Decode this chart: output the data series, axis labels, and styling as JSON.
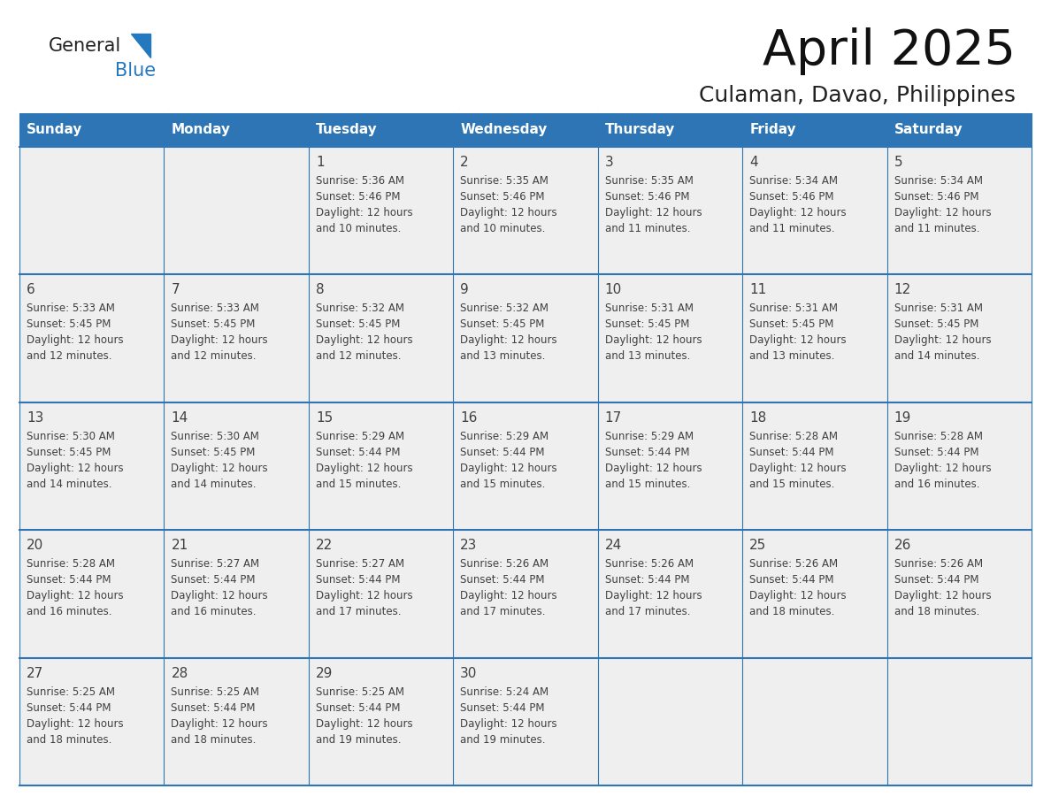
{
  "title": "April 2025",
  "subtitle": "Culaman, Davao, Philippines",
  "header_bg": "#2E75B6",
  "header_text_color": "#FFFFFF",
  "cell_bg": "#EFEFEF",
  "text_color": "#404040",
  "line_color": "#2E75B6",
  "logo_general_color": "#222222",
  "logo_blue_color": "#2478BE",
  "day_headers": [
    "Sunday",
    "Monday",
    "Tuesday",
    "Wednesday",
    "Thursday",
    "Friday",
    "Saturday"
  ],
  "calendar": [
    [
      {
        "day": "",
        "sunrise": "",
        "sunset": "",
        "daylight": ""
      },
      {
        "day": "",
        "sunrise": "",
        "sunset": "",
        "daylight": ""
      },
      {
        "day": "1",
        "sunrise": "5:36 AM",
        "sunset": "5:46 PM",
        "daylight": "12 hours and 10 minutes."
      },
      {
        "day": "2",
        "sunrise": "5:35 AM",
        "sunset": "5:46 PM",
        "daylight": "12 hours and 10 minutes."
      },
      {
        "day": "3",
        "sunrise": "5:35 AM",
        "sunset": "5:46 PM",
        "daylight": "12 hours and 11 minutes."
      },
      {
        "day": "4",
        "sunrise": "5:34 AM",
        "sunset": "5:46 PM",
        "daylight": "12 hours and 11 minutes."
      },
      {
        "day": "5",
        "sunrise": "5:34 AM",
        "sunset": "5:46 PM",
        "daylight": "12 hours and 11 minutes."
      }
    ],
    [
      {
        "day": "6",
        "sunrise": "5:33 AM",
        "sunset": "5:45 PM",
        "daylight": "12 hours and 12 minutes."
      },
      {
        "day": "7",
        "sunrise": "5:33 AM",
        "sunset": "5:45 PM",
        "daylight": "12 hours and 12 minutes."
      },
      {
        "day": "8",
        "sunrise": "5:32 AM",
        "sunset": "5:45 PM",
        "daylight": "12 hours and 12 minutes."
      },
      {
        "day": "9",
        "sunrise": "5:32 AM",
        "sunset": "5:45 PM",
        "daylight": "12 hours and 13 minutes."
      },
      {
        "day": "10",
        "sunrise": "5:31 AM",
        "sunset": "5:45 PM",
        "daylight": "12 hours and 13 minutes."
      },
      {
        "day": "11",
        "sunrise": "5:31 AM",
        "sunset": "5:45 PM",
        "daylight": "12 hours and 13 minutes."
      },
      {
        "day": "12",
        "sunrise": "5:31 AM",
        "sunset": "5:45 PM",
        "daylight": "12 hours and 14 minutes."
      }
    ],
    [
      {
        "day": "13",
        "sunrise": "5:30 AM",
        "sunset": "5:45 PM",
        "daylight": "12 hours and 14 minutes."
      },
      {
        "day": "14",
        "sunrise": "5:30 AM",
        "sunset": "5:45 PM",
        "daylight": "12 hours and 14 minutes."
      },
      {
        "day": "15",
        "sunrise": "5:29 AM",
        "sunset": "5:44 PM",
        "daylight": "12 hours and 15 minutes."
      },
      {
        "day": "16",
        "sunrise": "5:29 AM",
        "sunset": "5:44 PM",
        "daylight": "12 hours and 15 minutes."
      },
      {
        "day": "17",
        "sunrise": "5:29 AM",
        "sunset": "5:44 PM",
        "daylight": "12 hours and 15 minutes."
      },
      {
        "day": "18",
        "sunrise": "5:28 AM",
        "sunset": "5:44 PM",
        "daylight": "12 hours and 15 minutes."
      },
      {
        "day": "19",
        "sunrise": "5:28 AM",
        "sunset": "5:44 PM",
        "daylight": "12 hours and 16 minutes."
      }
    ],
    [
      {
        "day": "20",
        "sunrise": "5:28 AM",
        "sunset": "5:44 PM",
        "daylight": "12 hours and 16 minutes."
      },
      {
        "day": "21",
        "sunrise": "5:27 AM",
        "sunset": "5:44 PM",
        "daylight": "12 hours and 16 minutes."
      },
      {
        "day": "22",
        "sunrise": "5:27 AM",
        "sunset": "5:44 PM",
        "daylight": "12 hours and 17 minutes."
      },
      {
        "day": "23",
        "sunrise": "5:26 AM",
        "sunset": "5:44 PM",
        "daylight": "12 hours and 17 minutes."
      },
      {
        "day": "24",
        "sunrise": "5:26 AM",
        "sunset": "5:44 PM",
        "daylight": "12 hours and 17 minutes."
      },
      {
        "day": "25",
        "sunrise": "5:26 AM",
        "sunset": "5:44 PM",
        "daylight": "12 hours and 18 minutes."
      },
      {
        "day": "26",
        "sunrise": "5:26 AM",
        "sunset": "5:44 PM",
        "daylight": "12 hours and 18 minutes."
      }
    ],
    [
      {
        "day": "27",
        "sunrise": "5:25 AM",
        "sunset": "5:44 PM",
        "daylight": "12 hours and 18 minutes."
      },
      {
        "day": "28",
        "sunrise": "5:25 AM",
        "sunset": "5:44 PM",
        "daylight": "12 hours and 18 minutes."
      },
      {
        "day": "29",
        "sunrise": "5:25 AM",
        "sunset": "5:44 PM",
        "daylight": "12 hours and 19 minutes."
      },
      {
        "day": "30",
        "sunrise": "5:24 AM",
        "sunset": "5:44 PM",
        "daylight": "12 hours and 19 minutes."
      },
      {
        "day": "",
        "sunrise": "",
        "sunset": "",
        "daylight": ""
      },
      {
        "day": "",
        "sunrise": "",
        "sunset": "",
        "daylight": ""
      },
      {
        "day": "",
        "sunrise": "",
        "sunset": "",
        "daylight": ""
      }
    ]
  ]
}
